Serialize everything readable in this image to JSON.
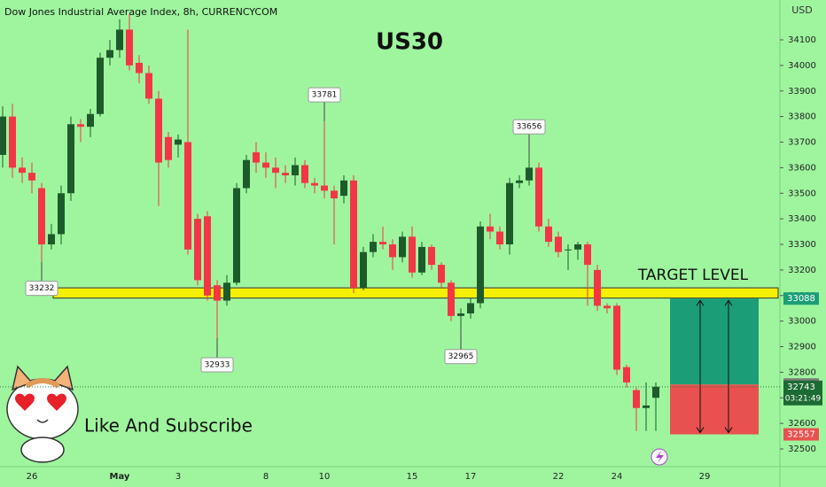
{
  "chart_data": {
    "type": "candlestick",
    "title": "US30",
    "subtitle": "Dow Jones Industrial Average Index, 8h, CURRENCYCOM",
    "currency": "USD",
    "target_label": "TARGET LEVEL",
    "caption": "Like And Subscribe",
    "up_color": "#1d5b2b",
    "down_color": "#f23645",
    "background": "#9ef59e",
    "categories": [
      null,
      null,
      null,
      "26",
      null,
      null,
      null,
      null,
      null,
      null,
      null,
      null,
      "May",
      null,
      null,
      null,
      null,
      null,
      "3",
      null,
      null,
      null,
      null,
      null,
      null,
      null,
      null,
      "8",
      null,
      null,
      null,
      null,
      null,
      "10",
      null,
      null,
      null,
      null,
      null,
      null,
      null,
      null,
      "15",
      null,
      null,
      null,
      null,
      null,
      "17",
      null,
      null,
      null,
      null,
      null,
      null,
      null,
      null,
      "22",
      null,
      null,
      null,
      null,
      null,
      "24",
      null,
      null,
      null,
      null,
      null,
      null,
      null,
      null,
      "29"
    ],
    "open": [
      33650,
      33800,
      33600,
      33580,
      33520,
      33300,
      33340,
      33500,
      33770,
      33760,
      33810,
      34030,
      34060,
      34140,
      34010,
      33970,
      33870,
      33720,
      33690,
      33700,
      33400,
      33410,
      33140,
      33080,
      33150,
      33520,
      33660,
      33620,
      33600,
      33580,
      33570,
      33610,
      33540,
      33530,
      33510,
      33490,
      33550,
      33130,
      33270,
      33310,
      33300,
      33250,
      33330,
      33190,
      33290,
      33220,
      33150,
      33020,
      33030,
      33070,
      33370,
      33350,
      33300,
      33540,
      33550,
      33600,
      33370,
      33330,
      33280,
      33280,
      33300,
      33200,
      33060,
      33060,
      32820,
      32730,
      32660,
      32700,
      null,
      null,
      null,
      null,
      null
    ],
    "high": [
      33840,
      33850,
      33640,
      33620,
      33540,
      33380,
      33530,
      33800,
      33790,
      33830,
      34050,
      34100,
      34180,
      34200,
      34040,
      34000,
      33900,
      33740,
      33730,
      34140,
      33420,
      33430,
      33160,
      33180,
      33540,
      33650,
      33700,
      33660,
      33640,
      33610,
      33640,
      33630,
      33560,
      33781,
      33530,
      33570,
      33570,
      33290,
      33340,
      33370,
      33320,
      33350,
      33370,
      33310,
      33300,
      33230,
      33160,
      33050,
      33090,
      33390,
      33420,
      33370,
      33560,
      33570,
      33656,
      33620,
      33400,
      33350,
      33300,
      33310,
      33310,
      33220,
      33070,
      33070,
      32830,
      32740,
      32760,
      32760,
      null,
      null,
      null,
      null,
      null
    ],
    "low": [
      33600,
      33560,
      33540,
      33500,
      33232,
      33280,
      33300,
      33470,
      33700,
      33720,
      33800,
      34000,
      34030,
      33980,
      33930,
      33850,
      33450,
      33600,
      33640,
      33260,
      33140,
      33080,
      32933,
      33060,
      33140,
      33500,
      33580,
      33560,
      33520,
      33540,
      33530,
      33520,
      33500,
      33480,
      33300,
      33460,
      33110,
      33120,
      33250,
      33280,
      33200,
      33230,
      33170,
      33180,
      33200,
      33130,
      33000,
      32965,
      33010,
      33050,
      33320,
      33280,
      33260,
      33520,
      33530,
      33350,
      33290,
      33250,
      33200,
      33240,
      33060,
      33040,
      33030,
      32790,
      32740,
      32570,
      32570,
      32570,
      null,
      null,
      null,
      null,
      null
    ],
    "close": [
      33800,
      33600,
      33580,
      33550,
      33300,
      33340,
      33500,
      33770,
      33760,
      33810,
      34030,
      34060,
      34140,
      34000,
      33970,
      33870,
      33620,
      33630,
      33710,
      33280,
      33160,
      33100,
      33080,
      33150,
      33520,
      33630,
      33620,
      33600,
      33580,
      33570,
      33610,
      33540,
      33530,
      33510,
      33480,
      33550,
      33130,
      33270,
      33310,
      33300,
      33250,
      33330,
      33190,
      33290,
      33220,
      33150,
      33020,
      33030,
      33070,
      33370,
      33350,
      33300,
      33540,
      33550,
      33600,
      33370,
      33310,
      33270,
      33280,
      33300,
      33220,
      33060,
      33050,
      32810,
      32760,
      32660,
      32670,
      32743,
      null,
      null,
      null,
      null,
      null
    ],
    "annotations": [
      33232,
      32933,
      33781,
      33656,
      32965
    ],
    "support_zone": [
      33090,
      33130
    ],
    "zone_color": "#f5f000",
    "position": {
      "target": 33088,
      "entry": 32752,
      "stop": 32557,
      "profit_color": "#1b9e77",
      "loss_color": "#e8514f"
    },
    "countdown": "03:21:49",
    "ylim": [
      32430,
      34230
    ],
    "yticks": [
      32500,
      32600,
      32700,
      32800,
      32900,
      33000,
      33100,
      33200,
      33300,
      33400,
      33500,
      33600,
      33700,
      33800,
      33900,
      34000,
      34100
    ]
  }
}
